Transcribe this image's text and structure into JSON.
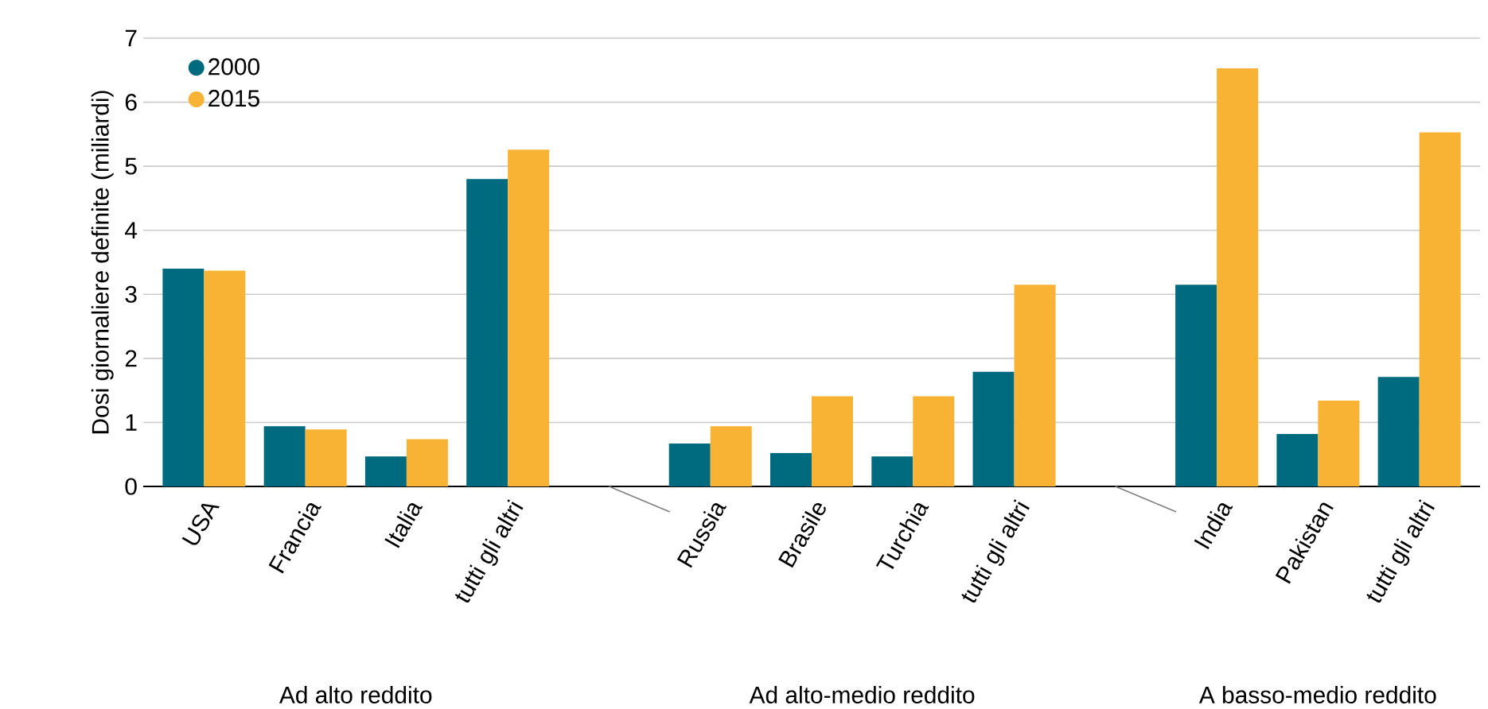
{
  "chart_data": {
    "type": "bar",
    "ylabel": "Dosi giornaliere definite (miliardi)",
    "categories": [
      "USA",
      "Francia",
      "Italia",
      "tutti gli altri",
      null,
      "Russia",
      "Brasile",
      "Turchia",
      "tutti gli altri",
      null,
      "India",
      "Pakistan",
      "tutti gli altri"
    ],
    "series": [
      {
        "name": "2000",
        "color": "#006a7f",
        "values": [
          3.4,
          0.94,
          0.47,
          4.8,
          null,
          0.67,
          0.52,
          0.47,
          1.79,
          null,
          3.15,
          0.82,
          1.71
        ]
      },
      {
        "name": "2015",
        "color": "#f8b334",
        "values": [
          3.37,
          0.89,
          0.74,
          5.26,
          null,
          0.94,
          1.41,
          1.41,
          3.15,
          null,
          6.53,
          1.34,
          5.53
        ]
      }
    ],
    "ylim": [
      0,
      7
    ],
    "yticks": [
      0,
      1,
      2,
      3,
      4,
      5,
      6,
      7
    ],
    "grid": "y",
    "legend": "top left",
    "annotations": [
      "Ad alto reddito",
      "Ad alto-medio reddito",
      "A basso-medio reddito"
    ]
  }
}
